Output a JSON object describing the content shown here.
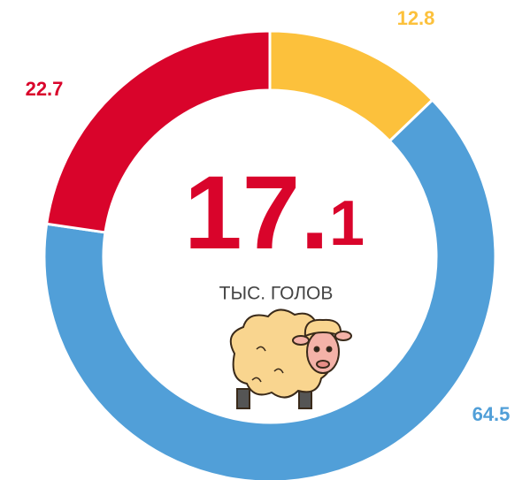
{
  "chart_data": {
    "type": "pie",
    "donut": true,
    "values": [
      12.8,
      64.5,
      22.7
    ],
    "colors": [
      "#fcc13c",
      "#519fd8",
      "#d9042b"
    ],
    "center_value": "17.1",
    "center_label": "ТЫС. ГОЛОВ"
  }
}
